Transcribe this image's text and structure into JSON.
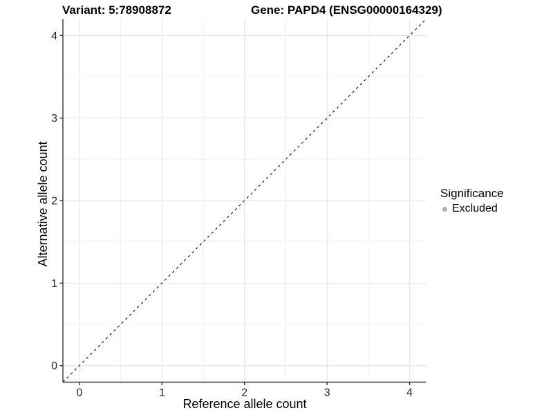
{
  "chart_data": {
    "type": "scatter",
    "titles": {
      "left": "Variant: 5:78908872",
      "right": "Gene: PAPD4 (ENSG00000164329)"
    },
    "xlabel": "Reference allele count",
    "ylabel": "Alternative allele count",
    "x_tick_values": [
      0,
      1,
      2,
      3,
      4
    ],
    "x_tick_labels": [
      "0",
      "1",
      "2",
      "3",
      "4"
    ],
    "y_tick_values": [
      0,
      1,
      2,
      3,
      4
    ],
    "y_tick_labels": [
      "0",
      "1",
      "2",
      "3",
      "4"
    ],
    "minor_tick_values": [
      0.5,
      1.5,
      2.5,
      3.5
    ],
    "xlim": [
      -0.2,
      4.2
    ],
    "ylim": [
      -0.2,
      4.2
    ],
    "points": [],
    "reference_line": {
      "type": "identity",
      "from": [
        -0.2,
        -0.2
      ],
      "to": [
        4.2,
        4.2
      ],
      "style": "dashed",
      "color": "#000000"
    },
    "grid": {
      "on": true,
      "major_color": "#e7e7e7",
      "minor_color": "#f2f2f2"
    },
    "panel_background": "#ffffff",
    "axis_color": "#333333",
    "tick_label_color": "#262626",
    "legend": {
      "title": "Significance",
      "position": "right",
      "items": [
        {
          "label": "Excluded",
          "marker": "circle",
          "color": "#b0b0b0"
        }
      ]
    }
  }
}
